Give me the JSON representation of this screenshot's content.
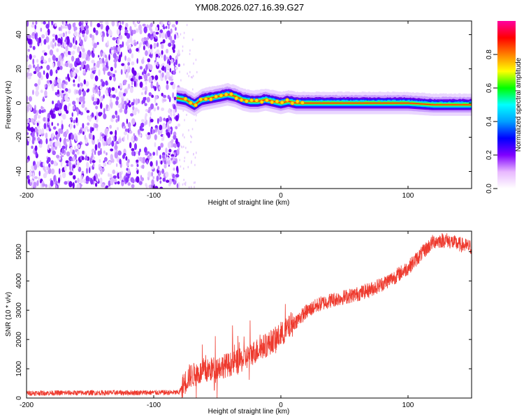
{
  "title": "YM08.2026.027.16.39.G27",
  "chart_data": [
    {
      "type": "heatmap",
      "xlabel": "Height of straight line (km)",
      "ylabel": "Frequency (Hz)",
      "xlim": [
        -200,
        150
      ],
      "ylim": [
        -50,
        48
      ],
      "xticks": [
        -200,
        -100,
        0,
        100
      ],
      "yticks": [
        -40,
        -20,
        0,
        20,
        40
      ],
      "noise_region_x": [
        -200,
        -80
      ],
      "signal_track": {
        "x": [
          -82,
          -75,
          -68,
          -62,
          -55,
          -48,
          -42,
          -36,
          -30,
          -24,
          -18,
          -12,
          -6,
          0,
          6,
          12,
          20,
          40,
          60,
          80,
          100,
          120,
          150
        ],
        "freq": [
          3,
          2,
          -1,
          2,
          3,
          4,
          5,
          4,
          2,
          1,
          1,
          2,
          1,
          0,
          1,
          0,
          0,
          0,
          0,
          0,
          0,
          -1,
          -1
        ]
      },
      "colorbar": {
        "label": "Normalized spectral amplitude",
        "range": [
          0,
          1
        ],
        "ticks": [
          "0.0",
          "0.2",
          "0.4",
          "0.6",
          "0.8"
        ],
        "colors": [
          "#ffffff",
          "#e8b8ff",
          "#8000ff",
          "#0000ff",
          "#00a0ff",
          "#00ffff",
          "#00ff00",
          "#ffff00",
          "#ff8000",
          "#ff0000",
          "#ff00a0"
        ]
      }
    },
    {
      "type": "line",
      "xlabel": "Height of straight line (km)",
      "ylabel": "SNR (10 * v/v)",
      "xlim": [
        -200,
        150
      ],
      "ylim": [
        0,
        5700
      ],
      "xticks": [
        -200,
        -100,
        0,
        100
      ],
      "yticks": [
        0,
        1000,
        2000,
        3000,
        4000,
        5000
      ],
      "color": "#ee3a2e",
      "series_envelope": {
        "x": [
          -200,
          -80,
          -76,
          -72,
          -60,
          -50,
          -40,
          -30,
          -20,
          -10,
          0,
          10,
          20,
          30,
          40,
          50,
          60,
          70,
          80,
          90,
          100,
          110,
          120,
          130,
          140,
          150
        ],
        "y": [
          170,
          190,
          500,
          750,
          900,
          1050,
          1150,
          1300,
          1600,
          1850,
          2150,
          2550,
          2950,
          3200,
          3350,
          3450,
          3550,
          3700,
          3900,
          4150,
          4450,
          4900,
          5350,
          5400,
          5250,
          5150
        ]
      }
    }
  ]
}
